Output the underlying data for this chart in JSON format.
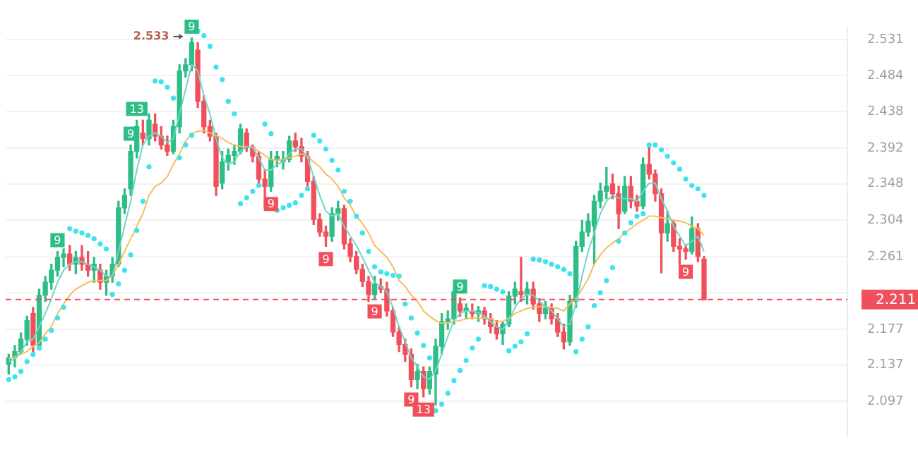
{
  "chart_data": {
    "type": "candlestick",
    "log": true,
    "grid": "y",
    "tick_labels": "y",
    "legend": false,
    "ylim": [
      2.059,
      2.547
    ],
    "yticks": [
      2.097,
      2.137,
      2.177,
      {
        "value": 2.219,
        "label": null
      },
      2.261,
      2.304,
      2.348,
      2.392,
      2.438,
      2.484,
      2.531
    ],
    "ref_lines": [
      {
        "axis": "y",
        "value": 2.211,
        "label": "2.211",
        "color": "#f0505c",
        "line_style": "dashed"
      }
    ],
    "annotations": [
      {
        "text": "9",
        "y": 2.267
      },
      {
        "text": "9",
        "y": 2.396
      },
      {
        "text": "13",
        "y": 2.427
      },
      {
        "text": "9",
        "y": 2.533
      },
      "2.533",
      {
        "text": "9",
        "y": 2.339
      },
      {
        "text": "9",
        "y": 2.273
      },
      {
        "text": "9",
        "y": 2.212
      },
      {
        "text": "9",
        "y": 2.113
      },
      {
        "text": "13",
        "y": 2.102
      },
      {
        "text": "9",
        "y": 2.213
      },
      {
        "text": "9",
        "y": 2.258
      }
    ],
    "categories": [
      null,
      null,
      null,
      null,
      null,
      null,
      null,
      null,
      null,
      null,
      null,
      null,
      null,
      null,
      null,
      null,
      null,
      null,
      null,
      null,
      null,
      null,
      null,
      null,
      null,
      null,
      null,
      null,
      null,
      null,
      null,
      null,
      null,
      null,
      null,
      null,
      null,
      null,
      null,
      null,
      null,
      null,
      null,
      null,
      null,
      null,
      null,
      null,
      null,
      null,
      null,
      null,
      null,
      null,
      null,
      null,
      null,
      null,
      null,
      null,
      null,
      null,
      null,
      null,
      null,
      null,
      null,
      null,
      null,
      null,
      null,
      null,
      null,
      null,
      null,
      null,
      null,
      null,
      null,
      null,
      null,
      null,
      null,
      null,
      null,
      null,
      null,
      null,
      null,
      null,
      null,
      null,
      null,
      null,
      null,
      null,
      null,
      null,
      null,
      null,
      null,
      null,
      null,
      null,
      null,
      null,
      null,
      null,
      null,
      null,
      null,
      null,
      null,
      null,
      null
    ],
    "series": [
      {
        "type": "candlestick",
        "ohlc": [
          [
            2.138,
            2.149,
            2.127,
            2.145
          ],
          [
            2.145,
            2.159,
            2.135,
            2.152
          ],
          [
            2.152,
            2.173,
            2.149,
            2.166
          ],
          [
            2.166,
            2.192,
            2.159,
            2.187
          ],
          [
            2.195,
            2.202,
            2.152,
            2.159
          ],
          [
            2.159,
            2.223,
            2.155,
            2.216
          ],
          [
            2.216,
            2.238,
            2.209,
            2.231
          ],
          [
            2.231,
            2.252,
            2.223,
            2.245
          ],
          [
            2.245,
            2.267,
            2.238,
            2.26
          ],
          [
            2.26,
            2.27,
            2.249,
            2.264
          ],
          [
            2.264,
            2.274,
            2.245,
            2.252
          ],
          [
            2.252,
            2.267,
            2.241,
            2.26
          ],
          [
            2.26,
            2.274,
            2.245,
            2.252
          ],
          [
            2.252,
            2.267,
            2.238,
            2.245
          ],
          [
            2.245,
            2.26,
            2.231,
            2.252
          ],
          [
            2.245,
            2.252,
            2.223,
            2.231
          ],
          [
            2.231,
            2.245,
            2.216,
            2.238
          ],
          [
            2.238,
            2.26,
            2.231,
            2.252
          ],
          [
            2.252,
            2.327,
            2.249,
            2.319
          ],
          [
            2.319,
            2.342,
            2.312,
            2.334
          ],
          [
            2.342,
            2.396,
            2.334,
            2.388
          ],
          [
            2.388,
            2.427,
            2.38,
            2.419
          ],
          [
            2.411,
            2.427,
            2.396,
            2.404
          ],
          [
            2.404,
            2.435,
            2.396,
            2.427
          ],
          [
            2.422,
            2.435,
            2.401,
            2.407
          ],
          [
            2.407,
            2.419,
            2.391,
            2.396
          ],
          [
            2.396,
            2.407,
            2.383,
            2.388
          ],
          [
            2.388,
            2.427,
            2.385,
            2.419
          ],
          [
            2.419,
            2.498,
            2.411,
            2.49
          ],
          [
            2.49,
            2.506,
            2.482,
            2.498
          ],
          [
            2.498,
            2.533,
            2.49,
            2.527
          ],
          [
            2.517,
            2.527,
            2.443,
            2.451
          ],
          [
            2.451,
            2.458,
            2.411,
            2.419
          ],
          [
            2.419,
            2.427,
            2.401,
            2.407
          ],
          [
            2.407,
            2.411,
            2.334,
            2.345
          ],
          [
            2.349,
            2.388,
            2.342,
            2.375
          ],
          [
            2.375,
            2.391,
            2.365,
            2.383
          ],
          [
            2.383,
            2.396,
            2.372,
            2.388
          ],
          [
            2.388,
            2.422,
            2.385,
            2.416
          ],
          [
            2.411,
            2.416,
            2.388,
            2.393
          ],
          [
            2.393,
            2.396,
            2.375,
            2.382
          ],
          [
            2.382,
            2.388,
            2.345,
            2.354
          ],
          [
            2.354,
            2.365,
            2.319,
            2.345
          ],
          [
            2.345,
            2.388,
            2.339,
            2.378
          ],
          [
            2.378,
            2.388,
            2.369,
            2.382
          ],
          [
            2.375,
            2.388,
            2.366,
            2.378
          ],
          [
            2.378,
            2.407,
            2.375,
            2.401
          ],
          [
            2.401,
            2.411,
            2.388,
            2.394
          ],
          [
            2.394,
            2.404,
            2.375,
            2.382
          ],
          [
            2.382,
            2.388,
            2.345,
            2.351
          ],
          [
            2.351,
            2.357,
            2.299,
            2.305
          ],
          [
            2.305,
            2.312,
            2.285,
            2.29
          ],
          [
            2.29,
            2.297,
            2.273,
            2.285
          ],
          [
            2.285,
            2.319,
            2.279,
            2.312
          ],
          [
            2.312,
            2.327,
            2.304,
            2.318
          ],
          [
            2.318,
            2.322,
            2.27,
            2.276
          ],
          [
            2.276,
            2.282,
            2.255,
            2.261
          ],
          [
            2.261,
            2.267,
            2.241,
            2.246
          ],
          [
            2.246,
            2.252,
            2.226,
            2.232
          ],
          [
            2.232,
            2.238,
            2.209,
            2.217
          ],
          [
            2.217,
            2.238,
            2.212,
            2.229
          ],
          [
            2.226,
            2.235,
            2.219,
            2.223
          ],
          [
            2.223,
            2.231,
            2.192,
            2.198
          ],
          [
            2.198,
            2.202,
            2.169,
            2.174
          ],
          [
            2.174,
            2.18,
            2.152,
            2.16
          ],
          [
            2.16,
            2.166,
            2.141,
            2.149
          ],
          [
            2.149,
            2.155,
            2.113,
            2.121
          ],
          [
            2.121,
            2.138,
            2.111,
            2.13
          ],
          [
            2.13,
            2.135,
            2.102,
            2.111
          ],
          [
            2.111,
            2.135,
            2.105,
            2.13
          ],
          [
            2.127,
            2.166,
            2.093,
            2.158
          ],
          [
            2.158,
            2.195,
            2.149,
            2.186
          ],
          [
            2.186,
            2.198,
            2.177,
            2.189
          ],
          [
            2.189,
            2.226,
            2.183,
            2.22
          ],
          [
            2.206,
            2.213,
            2.192,
            2.198
          ],
          [
            2.198,
            2.206,
            2.189,
            2.201
          ],
          [
            2.198,
            2.206,
            2.189,
            2.195
          ],
          [
            2.195,
            2.203,
            2.186,
            2.198
          ],
          [
            2.198,
            2.202,
            2.183,
            2.189
          ],
          [
            2.189,
            2.195,
            2.173,
            2.18
          ],
          [
            2.18,
            2.187,
            2.166,
            2.172
          ],
          [
            2.172,
            2.186,
            2.16,
            2.183
          ],
          [
            2.183,
            2.22,
            2.18,
            2.215
          ],
          [
            2.215,
            2.231,
            2.206,
            2.223
          ],
          [
            2.22,
            2.26,
            2.209,
            2.217
          ],
          [
            2.217,
            2.231,
            2.206,
            2.223
          ],
          [
            2.223,
            2.231,
            2.2,
            2.206
          ],
          [
            2.206,
            2.212,
            2.186,
            2.195
          ],
          [
            2.195,
            2.209,
            2.189,
            2.201
          ],
          [
            2.201,
            2.206,
            2.183,
            2.189
          ],
          [
            2.189,
            2.195,
            2.169,
            2.174
          ],
          [
            2.174,
            2.183,
            2.155,
            2.163
          ],
          [
            2.163,
            2.216,
            2.159,
            2.209
          ],
          [
            2.209,
            2.279,
            2.202,
            2.273
          ],
          [
            2.273,
            2.304,
            2.267,
            2.29
          ],
          [
            2.29,
            2.312,
            2.285,
            2.303
          ],
          [
            2.297,
            2.334,
            2.252,
            2.327
          ],
          [
            2.327,
            2.349,
            2.319,
            2.339
          ],
          [
            2.339,
            2.368,
            2.33,
            2.345
          ],
          [
            2.348,
            2.36,
            2.33,
            2.336
          ],
          [
            2.336,
            2.345,
            2.294,
            2.312
          ],
          [
            2.315,
            2.357,
            2.312,
            2.345
          ],
          [
            2.345,
            2.357,
            2.319,
            2.327
          ],
          [
            2.327,
            2.334,
            2.315,
            2.321
          ],
          [
            2.321,
            2.38,
            2.318,
            2.372
          ],
          [
            2.372,
            2.396,
            2.354,
            2.36
          ],
          [
            2.36,
            2.365,
            2.327,
            2.336
          ],
          [
            2.336,
            2.342,
            2.242,
            2.289
          ],
          [
            2.289,
            2.315,
            2.279,
            2.3
          ],
          [
            2.3,
            2.304,
            2.267,
            2.273
          ],
          [
            2.273,
            2.282,
            2.252,
            2.27
          ],
          [
            2.27,
            2.274,
            2.258,
            2.267
          ],
          [
            2.267,
            2.308,
            2.264,
            2.294
          ],
          [
            2.294,
            2.3,
            2.255,
            2.261
          ],
          [
            2.258,
            2.261,
            2.211,
            2.211
          ]
        ],
        "colors": [
          "#2ebd85",
          "#2ebd85",
          "#2ebd85",
          "#2ebd85",
          "#f0505c",
          "#2ebd85",
          "#2ebd85",
          "#2ebd85",
          "#2ebd85",
          "#2ebd85",
          "#f0505c",
          "#2ebd85",
          "#f0505c",
          "#f0505c",
          "#2ebd85",
          "#f0505c",
          "#2ebd85",
          "#2ebd85",
          "#2ebd85",
          "#2ebd85",
          "#2ebd85",
          "#2ebd85",
          "#f0505c",
          "#2ebd85",
          "#f0505c",
          "#f0505c",
          "#f0505c",
          "#2ebd85",
          "#2ebd85",
          "#2ebd85",
          "#2ebd85",
          "#f0505c",
          "#f0505c",
          "#f0505c",
          "#f0505c",
          "#2ebd85",
          "#2ebd85",
          "#2ebd85",
          "#2ebd85",
          "#f0505c",
          "#f0505c",
          "#f0505c",
          "#f0505c",
          "#2ebd85",
          "#2ebd85",
          "#2ebd85",
          "#2ebd85",
          "#f0505c",
          "#f0505c",
          "#f0505c",
          "#f0505c",
          "#f0505c",
          "#f0505c",
          "#2ebd85",
          "#2ebd85",
          "#f0505c",
          "#f0505c",
          "#f0505c",
          "#f0505c",
          "#f0505c",
          "#2ebd85",
          "#f0505c",
          "#f0505c",
          "#f0505c",
          "#f0505c",
          "#f0505c",
          "#f0505c",
          "#2ebd85",
          "#f0505c",
          "#2ebd85",
          "#2ebd85",
          "#2ebd85",
          "#2ebd85",
          "#2ebd85",
          "#f0505c",
          "#2ebd85",
          "#f0505c",
          "#2ebd85",
          "#f0505c",
          "#f0505c",
          "#f0505c",
          "#2ebd85",
          "#2ebd85",
          "#2ebd85",
          "#f0505c",
          "#2ebd85",
          "#f0505c",
          "#f0505c",
          "#2ebd85",
          "#f0505c",
          "#f0505c",
          "#f0505c",
          "#2ebd85",
          "#2ebd85",
          "#2ebd85",
          "#2ebd85",
          "#2ebd85",
          "#2ebd85",
          "#2ebd85",
          "#f0505c",
          "#f0505c",
          "#2ebd85",
          "#f0505c",
          "#f0505c",
          "#2ebd85",
          "#f0505c",
          "#f0505c",
          "#f0505c",
          "#2ebd85",
          "#f0505c",
          "#f0505c",
          "#f0505c",
          "#2ebd85",
          "#f0505c",
          "#f0505c"
        ]
      },
      {
        "type": "line",
        "color": "#6fd6c6",
        "values": [
          2.141,
          2.144,
          2.152,
          2.163,
          2.166,
          2.18,
          2.195,
          2.212,
          2.231,
          2.245,
          2.252,
          2.255,
          2.255,
          2.252,
          2.249,
          2.245,
          2.238,
          2.238,
          2.267,
          2.297,
          2.327,
          2.365,
          2.396,
          2.407,
          2.411,
          2.407,
          2.399,
          2.404,
          2.435,
          2.466,
          2.498,
          2.49,
          2.458,
          2.435,
          2.404,
          2.38,
          2.372,
          2.375,
          2.388,
          2.394,
          2.393,
          2.38,
          2.365,
          2.365,
          2.372,
          2.375,
          2.385,
          2.391,
          2.391,
          2.38,
          2.357,
          2.334,
          2.315,
          2.309,
          2.312,
          2.297,
          2.285,
          2.274,
          2.26,
          2.245,
          2.231,
          2.226,
          2.22,
          2.202,
          2.18,
          2.163,
          2.145,
          2.135,
          2.124,
          2.121,
          2.131,
          2.149,
          2.169,
          2.187,
          2.195,
          2.198,
          2.198,
          2.196,
          2.192,
          2.186,
          2.18,
          2.177,
          2.187,
          2.202,
          2.212,
          2.217,
          2.216,
          2.209,
          2.203,
          2.198,
          2.189,
          2.18,
          2.183,
          2.206,
          2.238,
          2.267,
          2.289,
          2.312,
          2.327,
          2.334,
          2.331,
          2.33,
          2.33,
          2.327,
          2.339,
          2.349,
          2.349,
          2.33,
          2.315,
          2.297,
          2.285,
          2.274,
          2.279,
          2.285,
          2.267
        ]
      },
      {
        "type": "line",
        "color": "#f7bd5a",
        "values": [
          2.144,
          2.146,
          2.149,
          2.152,
          2.158,
          2.162,
          2.172,
          2.18,
          2.195,
          2.206,
          2.216,
          2.223,
          2.227,
          2.231,
          2.233,
          2.233,
          2.233,
          2.239,
          2.252,
          2.267,
          2.282,
          2.297,
          2.312,
          2.334,
          2.345,
          2.349,
          2.357,
          2.372,
          2.385,
          2.401,
          2.41,
          2.413,
          2.414,
          2.411,
          2.408,
          2.404,
          2.399,
          2.396,
          2.394,
          2.394,
          2.393,
          2.388,
          2.383,
          2.378,
          2.377,
          2.378,
          2.38,
          2.382,
          2.385,
          2.382,
          2.375,
          2.369,
          2.36,
          2.354,
          2.345,
          2.331,
          2.322,
          2.309,
          2.3,
          2.289,
          2.274,
          2.267,
          2.26,
          2.249,
          2.233,
          2.226,
          2.216,
          2.209,
          2.198,
          2.192,
          2.187,
          2.184,
          2.184,
          2.186,
          2.187,
          2.189,
          2.19,
          2.19,
          2.19,
          2.189,
          2.186,
          2.186,
          2.19,
          2.195,
          2.198,
          2.201,
          2.202,
          2.203,
          2.203,
          2.202,
          2.201,
          2.198,
          2.206,
          2.212,
          2.223,
          2.235,
          2.252,
          2.263,
          2.271,
          2.277,
          2.282,
          2.289,
          2.294,
          2.3,
          2.304,
          2.309,
          2.309,
          2.307,
          2.306,
          2.304,
          2.303,
          2.301,
          2.297,
          2.294,
          2.286
        ]
      },
      {
        "type": "scatter",
        "color": "#3fe3ee",
        "marker": "circle",
        "values": [
          2.121,
          2.124,
          2.13,
          2.141,
          2.149,
          2.156,
          2.166,
          2.176,
          2.19,
          2.202,
          2.294,
          2.291,
          2.289,
          2.286,
          2.282,
          2.276,
          2.27,
          2.217,
          2.229,
          2.245,
          2.263,
          2.292,
          2.327,
          2.369,
          2.477,
          2.476,
          2.469,
          2.455,
          2.38,
          2.396,
          2.408,
          2.542,
          2.536,
          2.522,
          2.495,
          2.479,
          2.451,
          2.435,
          2.324,
          2.331,
          2.339,
          2.346,
          2.422,
          2.41,
          2.316,
          2.319,
          2.322,
          2.325,
          2.334,
          2.342,
          2.408,
          2.401,
          2.391,
          2.377,
          2.365,
          2.339,
          2.327,
          2.309,
          2.289,
          2.267,
          2.249,
          2.243,
          2.241,
          2.239,
          2.238,
          2.206,
          2.19,
          2.173,
          2.159,
          2.145,
          2.087,
          2.094,
          2.106,
          2.12,
          2.131,
          2.142,
          2.156,
          2.166,
          2.227,
          2.226,
          2.223,
          2.22,
          2.153,
          2.158,
          2.163,
          2.172,
          2.258,
          2.257,
          2.255,
          2.252,
          2.249,
          2.246,
          2.241,
          2.152,
          2.166,
          2.18,
          2.204,
          2.219,
          2.233,
          2.248,
          2.279,
          2.289,
          2.301,
          2.309,
          2.312,
          2.396,
          2.396,
          2.39,
          2.382,
          2.374,
          2.366,
          2.354,
          2.346,
          2.342,
          2.334
        ]
      }
    ]
  }
}
